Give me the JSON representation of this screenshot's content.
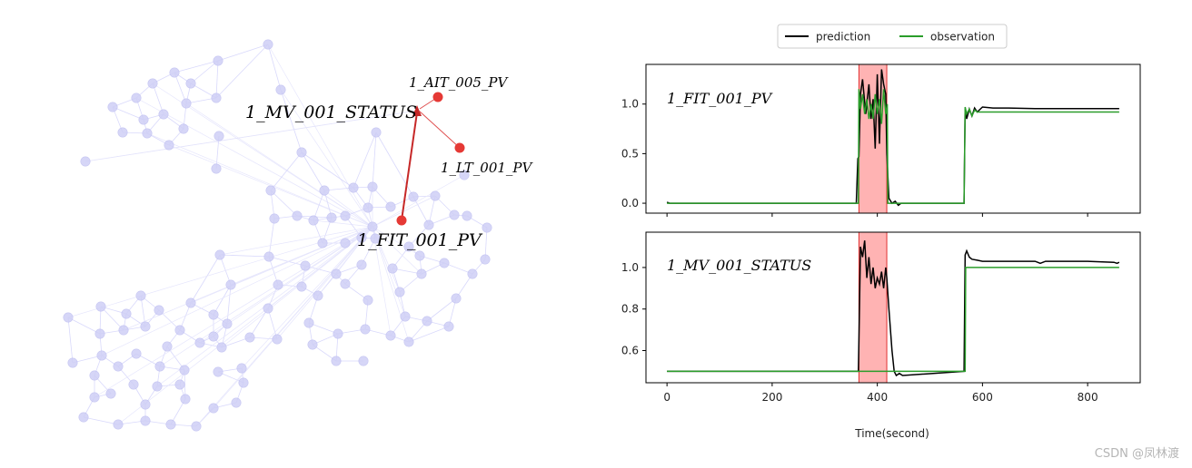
{
  "graph": {
    "highlight_labels": {
      "ait005": "1_AIT_005_PV",
      "mv001": "1_MV_001_STATUS",
      "lt001": "1_LT_001_PV",
      "fit001": "1_FIT_001_PV"
    },
    "colors": {
      "node": "#c9c9f5",
      "node_edge": "#b3b3ee",
      "edge": "#e0e0fb",
      "highlight": "#dd2a2a"
    }
  },
  "legend": {
    "prediction": "prediction",
    "observation": "observation"
  },
  "colors": {
    "prediction": "#000000",
    "observation": "#2a9d2a",
    "anomaly_band": "#ffb3b3",
    "anomaly_edge": "#e03030"
  },
  "chart_data": [
    {
      "type": "line",
      "annotation": "1_FIT_001_PV",
      "xlim": [
        -40,
        900
      ],
      "ylim": [
        -0.1,
        1.4
      ],
      "yticks": [
        0.0,
        0.5,
        1.0
      ],
      "yticklabels": [
        "0.0",
        "0.5",
        "1.0"
      ],
      "anomaly_range": [
        365,
        418
      ],
      "series": [
        {
          "name": "prediction",
          "x": [
            0,
            5,
            10,
            360,
            363,
            365,
            368,
            372,
            378,
            384,
            388,
            392,
            396,
            400,
            404,
            408,
            412,
            416,
            418,
            422,
            428,
            434,
            440,
            445,
            565,
            567,
            570,
            575,
            580,
            585,
            590,
            600,
            620,
            650,
            700,
            750,
            800,
            860
          ],
          "y": [
            0.01,
            0.0,
            0.0,
            0.0,
            0.45,
            0.47,
            1.1,
            1.25,
            0.9,
            1.2,
            0.85,
            1.05,
            0.55,
            1.3,
            0.6,
            1.35,
            1.2,
            1.1,
            0.5,
            0.05,
            0.0,
            0.02,
            -0.02,
            0.0,
            0.0,
            0.95,
            0.85,
            0.95,
            0.88,
            0.96,
            0.92,
            0.97,
            0.96,
            0.96,
            0.955,
            0.955,
            0.955,
            0.955
          ]
        },
        {
          "name": "observation",
          "x": [
            0,
            360,
            364,
            365,
            368,
            372,
            376,
            380,
            384,
            388,
            392,
            396,
            400,
            404,
            408,
            412,
            416,
            419,
            420,
            565,
            567,
            570,
            575,
            580,
            585,
            590,
            600,
            650,
            700,
            750,
            800,
            860
          ],
          "y": [
            0.0,
            0.0,
            0.0,
            1.15,
            0.95,
            1.1,
            0.9,
            1.05,
            0.85,
            1.0,
            0.85,
            1.1,
            0.9,
            1.05,
            0.8,
            1.15,
            0.9,
            1.0,
            0.0,
            0.0,
            0.97,
            0.9,
            0.95,
            0.88,
            0.94,
            0.92,
            0.92,
            0.92,
            0.92,
            0.92,
            0.92,
            0.92
          ]
        }
      ]
    },
    {
      "type": "line",
      "annotation": "1_MV_001_STATUS",
      "xlabel": "Time(second)",
      "xlim": [
        -40,
        900
      ],
      "ylim": [
        0.445,
        1.17
      ],
      "xticks": [
        0,
        200,
        400,
        600,
        800
      ],
      "xticklabels": [
        "0",
        "200",
        "400",
        "600",
        "800"
      ],
      "yticks": [
        0.6,
        0.8,
        1.0
      ],
      "yticklabels": [
        "0.6",
        "0.8",
        "1.0"
      ],
      "anomaly_range": [
        365,
        418
      ],
      "series": [
        {
          "name": "prediction",
          "x": [
            0,
            364,
            365,
            368,
            372,
            376,
            380,
            384,
            388,
            392,
            396,
            400,
            404,
            408,
            412,
            416,
            418,
            422,
            428,
            432,
            436,
            442,
            448,
            565,
            567,
            570,
            575,
            580,
            590,
            600,
            650,
            700,
            710,
            720,
            760,
            800,
            850,
            856,
            860
          ],
          "y": [
            0.5,
            0.5,
            0.65,
            1.1,
            1.05,
            1.13,
            0.95,
            1.05,
            0.92,
            1.0,
            0.9,
            0.95,
            0.92,
            0.98,
            0.9,
            1.0,
            0.95,
            0.8,
            0.6,
            0.5,
            0.48,
            0.49,
            0.48,
            0.5,
            1.06,
            1.08,
            1.05,
            1.04,
            1.035,
            1.03,
            1.03,
            1.03,
            1.02,
            1.03,
            1.03,
            1.03,
            1.025,
            1.02,
            1.025
          ]
        },
        {
          "name": "observation",
          "x": [
            0,
            567,
            568,
            860
          ],
          "y": [
            0.5,
            0.5,
            1.0,
            1.0
          ]
        }
      ]
    }
  ],
  "watermark": "CSDN @凤林渡"
}
